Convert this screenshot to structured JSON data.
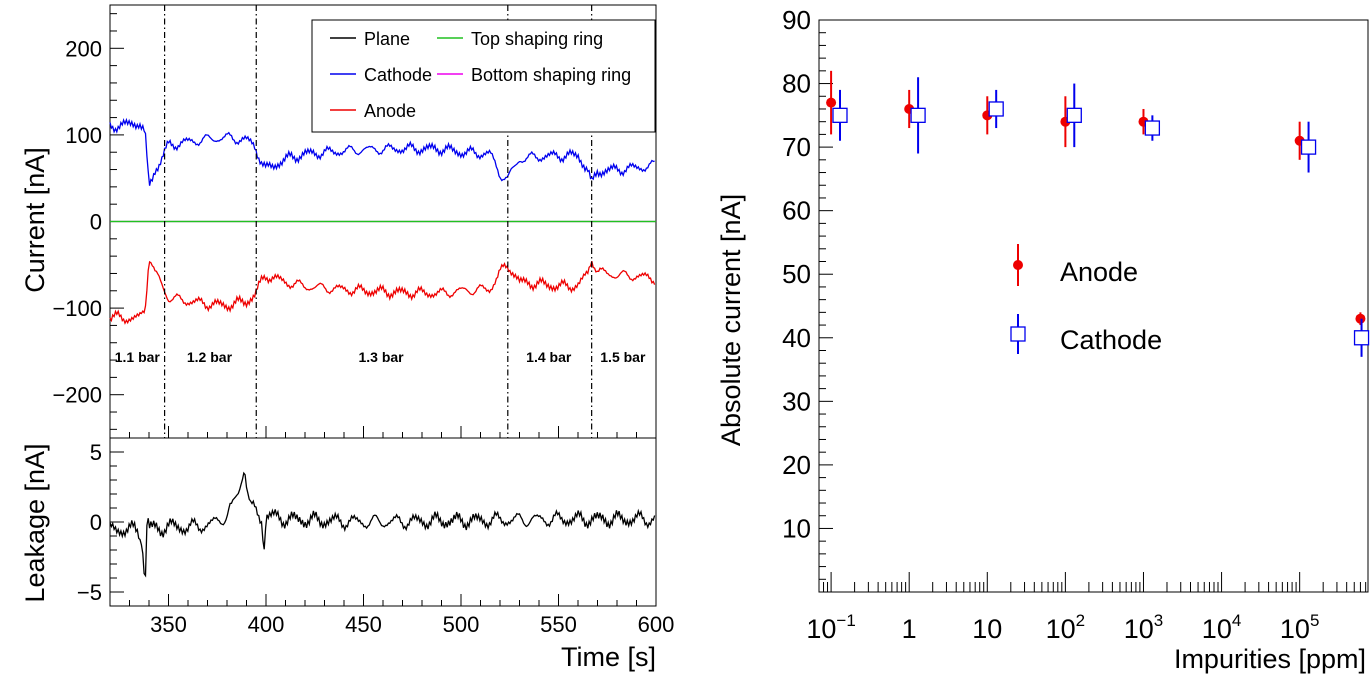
{
  "chart_data": [
    {
      "type": "line",
      "panel": "top-left",
      "xlim": [
        320,
        600
      ],
      "ylim": [
        -250,
        250
      ],
      "ylabel": "Current [nA]",
      "xticks": [
        350,
        400,
        450,
        500,
        550,
        600
      ],
      "yticks": [
        -200,
        -100,
        0,
        100,
        200
      ],
      "ytick_labels": [
        "−200",
        "−100",
        "0",
        "100",
        "200"
      ],
      "legend_position": "top-right",
      "legend": [
        {
          "label": "Plane",
          "color": "#000000"
        },
        {
          "label": "Top shaping ring",
          "color": "#21c121"
        },
        {
          "label": "Cathode",
          "color": "#0000ee"
        },
        {
          "label": "Bottom shaping ring",
          "color": "#ee00ee"
        },
        {
          "label": "Anode",
          "color": "#ee0000"
        }
      ],
      "dividers_x": [
        348,
        395,
        524,
        567
      ],
      "region_labels": [
        {
          "x": 334,
          "text": "1.1 bar"
        },
        {
          "x": 371,
          "text": "1.2 bar"
        },
        {
          "x": 459,
          "text": "1.3 bar"
        },
        {
          "x": 545,
          "text": "1.4 bar"
        },
        {
          "x": 583,
          "text": "1.5 bar"
        }
      ],
      "series": [
        {
          "name": "Cathode",
          "color": "#0000ee",
          "amplitude": 8,
          "x": [
            320,
            330,
            335,
            338,
            340,
            343,
            345,
            348,
            350,
            360,
            370,
            380,
            390,
            394,
            398,
            400,
            410,
            420,
            450,
            470,
            490,
            500,
            515,
            520,
            524,
            526,
            530,
            540,
            550,
            560,
            565,
            567,
            570,
            580,
            590,
            600
          ],
          "y": [
            110,
            112,
            115,
            100,
            40,
            60,
            65,
            80,
            88,
            92,
            95,
            97,
            94,
            88,
            68,
            60,
            72,
            78,
            83,
            84,
            84,
            80,
            78,
            55,
            48,
            58,
            72,
            75,
            76,
            76,
            60,
            42,
            58,
            60,
            62,
            65
          ]
        },
        {
          "name": "Anode",
          "color": "#ee0000",
          "amplitude": 8,
          "x": [
            320,
            330,
            335,
            338,
            340,
            343,
            345,
            348,
            350,
            360,
            370,
            380,
            390,
            394,
            398,
            400,
            410,
            420,
            450,
            470,
            490,
            500,
            515,
            520,
            524,
            526,
            530,
            540,
            550,
            560,
            565,
            567,
            570,
            580,
            590,
            600
          ],
          "y": [
            -110,
            -112,
            -112,
            -100,
            -40,
            -60,
            -65,
            -80,
            -88,
            -92,
            -95,
            -97,
            -92,
            -86,
            -68,
            -62,
            -70,
            -75,
            -80,
            -82,
            -83,
            -80,
            -78,
            -58,
            -52,
            -55,
            -70,
            -72,
            -75,
            -74,
            -60,
            -42,
            -58,
            -62,
            -63,
            -66
          ]
        },
        {
          "name": "Plane",
          "color": "#000000",
          "x": [
            320,
            600
          ],
          "y": [
            0,
            0
          ]
        },
        {
          "name": "Top shaping ring",
          "color": "#21c121",
          "x": [
            320,
            600
          ],
          "y": [
            0,
            0
          ]
        }
      ]
    },
    {
      "type": "line",
      "panel": "bottom-left",
      "xlim": [
        320,
        600
      ],
      "ylim": [
        -6,
        6
      ],
      "xlabel": "Time [s]",
      "ylabel": "Leakage [nA]",
      "xticks": [
        350,
        400,
        450,
        500,
        550,
        600
      ],
      "yticks": [
        -5,
        0,
        5
      ],
      "ytick_labels": [
        "−5",
        "0",
        "5"
      ],
      "series": [
        {
          "name": "Leakage",
          "color": "#000000",
          "amplitude": 0.7,
          "x": [
            320,
            330,
            335,
            337,
            338,
            339,
            340,
            345,
            350,
            360,
            370,
            375,
            380,
            383,
            386,
            388,
            389,
            390,
            392,
            395,
            398,
            399,
            400,
            410,
            450,
            500,
            550,
            600
          ],
          "y": [
            -0.6,
            -0.5,
            -0.7,
            -2.5,
            -5.0,
            0.5,
            -0.4,
            -0.5,
            -0.3,
            -0.4,
            -0.2,
            0.0,
            0.5,
            1.5,
            2.0,
            3.0,
            3.7,
            2.4,
            1.2,
            0.6,
            0.2,
            -2.3,
            0.5,
            0.2,
            0.0,
            0.1,
            0.2,
            0.2
          ]
        }
      ]
    },
    {
      "type": "scatter",
      "panel": "right",
      "xscale": "log",
      "xlim": [
        0.07,
        750000
      ],
      "ylim": [
        0,
        90
      ],
      "xlabel": "Impurities [ppm]",
      "ylabel": "Absolute current [nA]",
      "yticks": [
        10,
        20,
        30,
        40,
        50,
        60,
        70,
        80,
        90
      ],
      "xticks": [
        {
          "value": 0.1,
          "base": "10",
          "exp": "−1"
        },
        {
          "value": 1,
          "base": "1",
          "exp": ""
        },
        {
          "value": 10,
          "base": "10",
          "exp": ""
        },
        {
          "value": 100,
          "base": "10",
          "exp": "2"
        },
        {
          "value": 1000,
          "base": "10",
          "exp": "3"
        },
        {
          "value": 10000,
          "base": "10",
          "exp": "4"
        },
        {
          "value": 100000,
          "base": "10",
          "exp": "5"
        }
      ],
      "legend_position": "center",
      "series": [
        {
          "name": "Anode",
          "color": "#ee0000",
          "marker": "filled-circle",
          "x": [
            0.1,
            1,
            10,
            100,
            1000,
            100000,
            600000
          ],
          "y": [
            77,
            76,
            75,
            74,
            74,
            71,
            43
          ],
          "err": [
            5,
            3,
            3,
            4,
            2,
            3,
            1
          ]
        },
        {
          "name": "Cathode",
          "color": "#0000ee",
          "marker": "open-square",
          "x": [
            0.13,
            1.3,
            13,
            130,
            1300,
            130000,
            620000
          ],
          "y": [
            75,
            75,
            76,
            75,
            73,
            70,
            40
          ],
          "err": [
            4,
            6,
            3,
            5,
            2,
            4,
            3
          ]
        }
      ]
    }
  ]
}
